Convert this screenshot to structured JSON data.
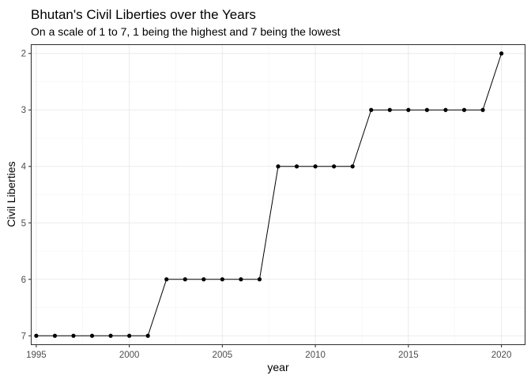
{
  "chart_data": {
    "type": "line",
    "title": "Bhutan's Civil Liberties over the Years",
    "subtitle": "On a scale of 1 to 7, 1 being the highest and 7 being the lowest",
    "xlabel": "year",
    "ylabel": "Civil Liberties",
    "y_reversed": true,
    "xlim": [
      1994.75,
      2021.25
    ],
    "ylim": [
      1.85,
      7.15
    ],
    "x_ticks": [
      1995,
      2000,
      2005,
      2010,
      2015,
      2020
    ],
    "y_ticks": [
      2,
      3,
      4,
      5,
      6,
      7
    ],
    "x_minor": [
      1997.5,
      2002.5,
      2007.5,
      2012.5,
      2017.5
    ],
    "y_minor": [
      2.5,
      3.5,
      4.5,
      5.5,
      6.5
    ],
    "grid": true,
    "line_color": "#000000",
    "x": [
      1995,
      1996,
      1997,
      1998,
      1999,
      2000,
      2001,
      2002,
      2003,
      2004,
      2005,
      2006,
      2007,
      2008,
      2009,
      2010,
      2011,
      2012,
      2013,
      2014,
      2015,
      2016,
      2017,
      2018,
      2019,
      2020
    ],
    "values": [
      7,
      7,
      7,
      7,
      7,
      7,
      7,
      6,
      6,
      6,
      6,
      6,
      6,
      4,
      4,
      4,
      4,
      4,
      3,
      3,
      3,
      3,
      3,
      3,
      3,
      2
    ]
  }
}
